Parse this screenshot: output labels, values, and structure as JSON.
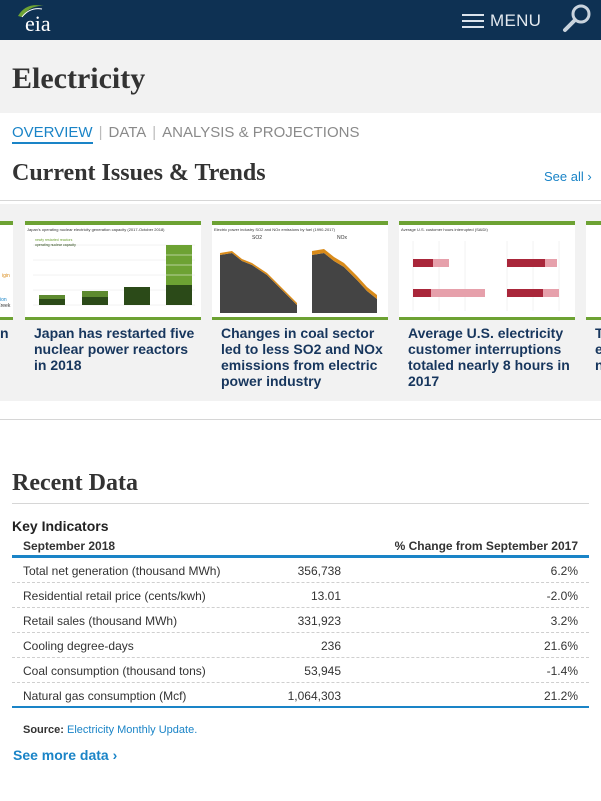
{
  "header": {
    "logo_text": "eia",
    "menu_label": "MENU"
  },
  "page": {
    "title": "Electricity"
  },
  "tabs": [
    {
      "label": "OVERVIEW",
      "active": true
    },
    {
      "label": "DATA",
      "active": false
    },
    {
      "label": "ANALYSIS & PROJECTIONS",
      "active": false
    }
  ],
  "trends": {
    "title": "Current Issues & Trends",
    "see_all": "See all ›",
    "cards": [
      {
        "caption": "Japan has restarted five nuclear power reactors in 2018",
        "thumb_title": "Japan's operating nuclear electricity generation capacity (2017-October 2018)",
        "icon": "stacked-bar-chart-thumbnail"
      },
      {
        "caption": "Changes in coal sector led to less SO2 and NOx emissions from electric power industry",
        "thumb_title": "Electric power industry SO2 and NOx emissions by fuel (1990-2017)",
        "thumb_labels": [
          "SO2",
          "NOx"
        ],
        "icon": "area-chart-thumbnail"
      },
      {
        "caption": "Average U.S. electricity customer interruptions totaled nearly 8 hours in 2017",
        "thumb_title": "Average U.S. customer hours interrupted (SAIDI)",
        "icon": "horizontal-bar-chart-thumbnail"
      },
      {
        "caption": "T e n",
        "icon": "partial-card-thumbnail"
      }
    ]
  },
  "recent": {
    "title": "Recent Data",
    "kpi_title": "Key Indicators",
    "col_month": "September 2018",
    "col_change": "% Change from September 2017",
    "rows": [
      {
        "label": "Total net generation (thousand MWh)",
        "value": "356,738",
        "change": "6.2%"
      },
      {
        "label": "Residential retail price (cents/kwh)",
        "value": "13.01",
        "change": "-2.0%"
      },
      {
        "label": "Retail sales (thousand MWh)",
        "value": "331,923",
        "change": "3.2%"
      },
      {
        "label": "Cooling degree-days",
        "value": "236",
        "change": "21.6%"
      },
      {
        "label": "Coal consumption (thousand tons)",
        "value": "53,945",
        "change": "-1.4%"
      },
      {
        "label": "Natural gas consumption (Mcf)",
        "value": "1,064,303",
        "change": "21.2%"
      }
    ],
    "source_label": "Source:",
    "source_link": "Electricity Monthly Update.",
    "see_more": "See more data ›"
  },
  "colors": {
    "header_bg": "#0e3153",
    "accent": "#1a84c7",
    "card_border": "#6da233",
    "caption": "#17365d"
  }
}
